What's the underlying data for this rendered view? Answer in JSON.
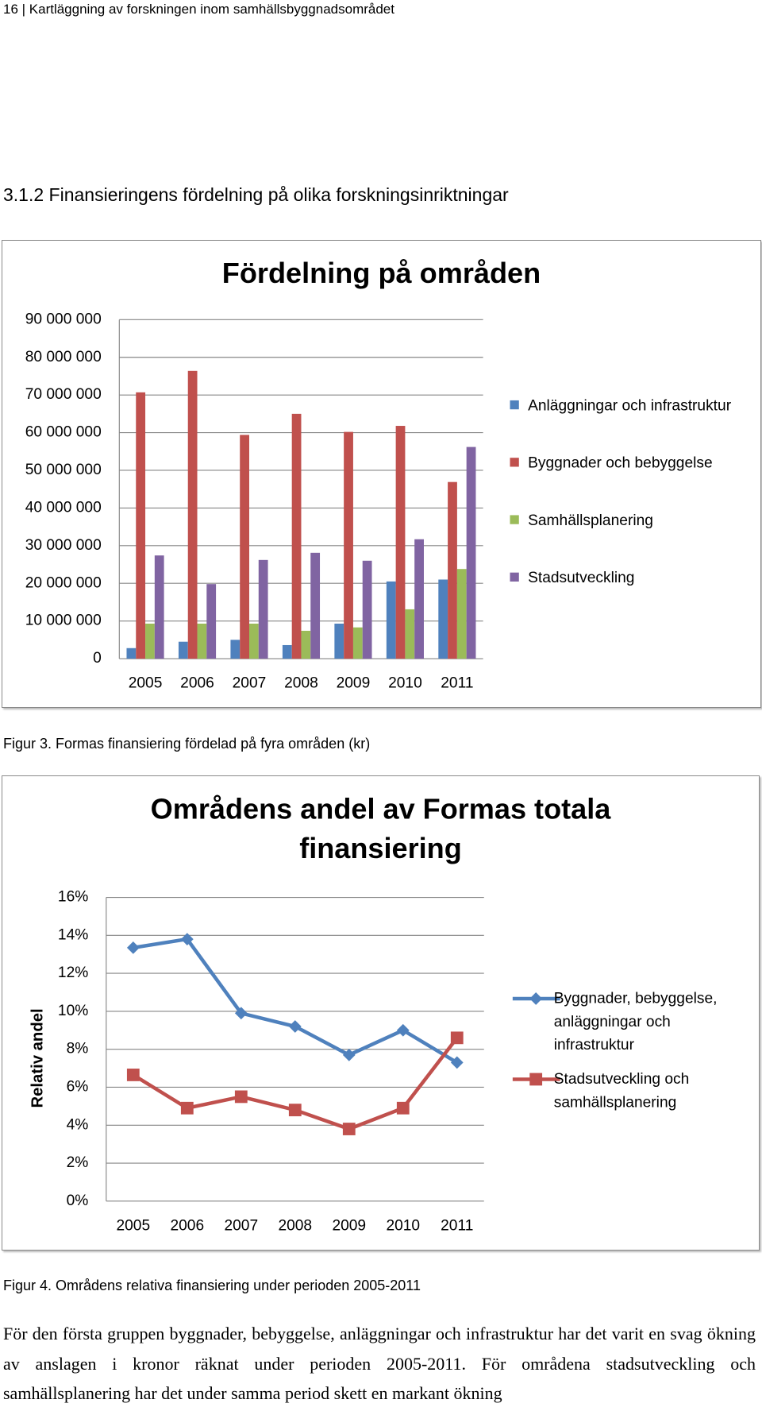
{
  "header": "16 | Kartläggning av forskningen inom samhällsbyggnadsområdet",
  "heading": "3.1.2 Finansieringens fördelning på olika forskningsinriktningar",
  "chart_data": [
    {
      "type": "bar",
      "title": "Fördelning på områden",
      "categories": [
        "2005",
        "2006",
        "2007",
        "2008",
        "2009",
        "2010",
        "2011"
      ],
      "series": [
        {
          "name": "Anläggningar och infrastruktur",
          "color": "#4f81bd",
          "values": [
            2800000,
            4500000,
            5000000,
            3600000,
            9300000,
            20500000,
            21000000
          ]
        },
        {
          "name": "Byggnader och bebyggelse",
          "color": "#c0504d",
          "values": [
            70700000,
            76400000,
            59400000,
            65000000,
            60200000,
            61800000,
            46900000
          ]
        },
        {
          "name": "Samhällsplanering",
          "color": "#9bbb59",
          "values": [
            9300000,
            9300000,
            9300000,
            7400000,
            8300000,
            13100000,
            23800000
          ]
        },
        {
          "name": "Stadsutveckling",
          "color": "#8064a2",
          "values": [
            27400000,
            19800000,
            26200000,
            28100000,
            26000000,
            31700000,
            56200000
          ]
        }
      ],
      "ylim": [
        0,
        90000000
      ],
      "yticks": [
        0,
        {
          "value": 10000000,
          "label": "10 000 000"
        },
        {
          "value": 20000000,
          "label": "20 000 000"
        },
        {
          "value": 30000000,
          "label": "30 000 000"
        },
        {
          "value": 40000000,
          "label": "40 000 000"
        },
        {
          "value": 50000000,
          "label": "50 000 000"
        },
        {
          "value": 60000000,
          "label": "60 000 000"
        },
        {
          "value": 70000000,
          "label": "70 000 000"
        },
        {
          "value": 80000000,
          "label": "80 000 000"
        },
        {
          "value": 90000000,
          "label": "90 000 000"
        }
      ],
      "grid": true,
      "legend": "right"
    },
    {
      "type": "line",
      "title": "Områdens andel av Formas totala finansiering",
      "y_label": "Relativ andel",
      "categories": [
        "2005",
        "2006",
        "2007",
        "2008",
        "2009",
        "2010",
        "2011"
      ],
      "series": [
        {
          "name": "Byggnader, bebyggelse, anläggningar och infrastruktur",
          "color": "#4f81bd",
          "marker": "diamond",
          "values": [
            13.35,
            13.8,
            9.9,
            9.2,
            7.7,
            9.0,
            7.3
          ]
        },
        {
          "name": "Stadsutveckling och samhällsplanering",
          "color": "#c0504d",
          "marker": "square",
          "values": [
            6.65,
            4.9,
            5.5,
            4.8,
            3.8,
            4.9,
            8.6
          ]
        }
      ],
      "ylim": [
        0,
        16
      ],
      "yticks": [
        {
          "value": 0,
          "label": "0%"
        },
        {
          "value": 2,
          "label": "2%"
        },
        {
          "value": 4,
          "label": "4%"
        },
        {
          "value": 6,
          "label": "6%"
        },
        {
          "value": 8,
          "label": "8%"
        },
        {
          "value": 10,
          "label": "10%"
        },
        {
          "value": 12,
          "label": "12%"
        },
        {
          "value": 14,
          "label": "14%"
        },
        {
          "value": 16,
          "label": "16%"
        }
      ],
      "grid": true,
      "legend": "right"
    }
  ],
  "captions": [
    "Figur 3. Formas finansiering fördelad på fyra områden (kr)",
    "Figur 4. Områdens relativa finansiering under perioden 2005-2011"
  ],
  "paragraph": "För den första gruppen byggnader, bebyggelse, anläggningar och infrastruktur har det varit en svag ökning av anslagen i kronor räknat under perioden 2005-2011. För områdena stadsutveckling och samhällsplanering har det under samma period skett en markant ökning"
}
